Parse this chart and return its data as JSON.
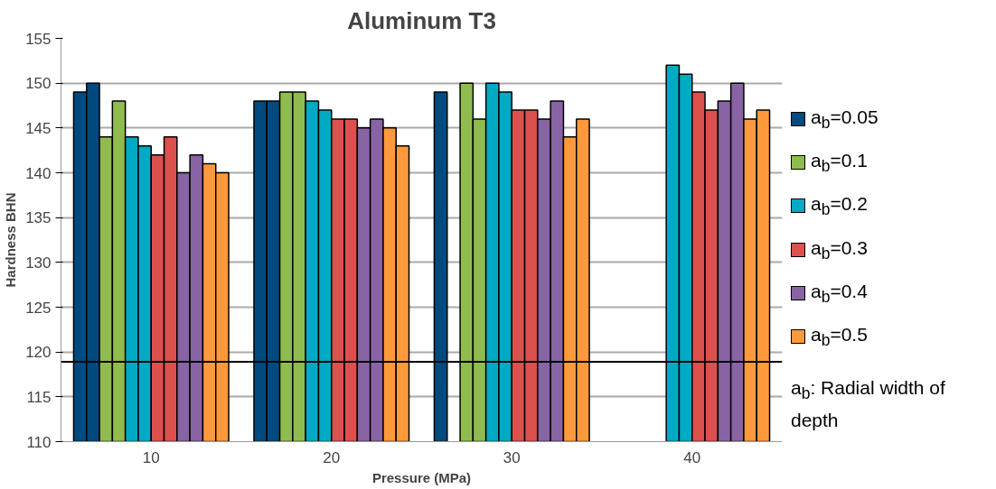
{
  "chart_data": {
    "type": "bar",
    "title": "Aluminum T3",
    "xlabel": "Pressure (MPa)",
    "ylabel": "Hardness BHN",
    "categories": [
      "10",
      "20",
      "30",
      "40"
    ],
    "series": [
      {
        "name": "a$_{b}$=0.05",
        "color": "#004a7f",
        "values": [
          149,
          148,
          149,
          null
        ]
      },
      {
        "color": "#004a7f",
        "values": [
          150,
          148,
          null,
          null
        ]
      },
      {
        "name": "a$_{b}$=0.1",
        "color": "#8fbc4f",
        "values": [
          144,
          149,
          150,
          null
        ]
      },
      {
        "color": "#8fbc4f",
        "values": [
          148,
          149,
          146,
          null
        ]
      },
      {
        "name": "a$_{b}$=0.2",
        "color": "#00aac4",
        "values": [
          144,
          148,
          150,
          152
        ]
      },
      {
        "color": "#00aac4",
        "values": [
          143,
          147,
          149,
          151
        ]
      },
      {
        "name": "a$_{b}$=0.3",
        "color": "#dc504e",
        "values": [
          142,
          146,
          147,
          149
        ]
      },
      {
        "color": "#dc504e",
        "values": [
          144,
          146,
          147,
          147
        ]
      },
      {
        "name": "a$_{b}$=0.4",
        "color": "#8864a4",
        "values": [
          140,
          145,
          146,
          148
        ]
      },
      {
        "color": "#8864a4",
        "values": [
          142,
          146,
          148,
          150
        ]
      },
      {
        "name": "a$_{b}$=0.5",
        "color": "#ff9a3c",
        "values": [
          141,
          145,
          144,
          146
        ]
      },
      {
        "color": "#ff9a3c",
        "values": [
          140,
          143,
          146,
          147
        ]
      }
    ],
    "ylim": [
      110,
      155
    ],
    "yticks": [
      110,
      115,
      120,
      125,
      130,
      135,
      140,
      145,
      150,
      155
    ],
    "ref_lines": [
      {
        "axis": "y",
        "value": 118.9,
        "color": "#000000"
      }
    ],
    "grid": "y",
    "legend": "right",
    "annotations": [
      "a$_{b}$: Radial width of depth"
    ]
  }
}
